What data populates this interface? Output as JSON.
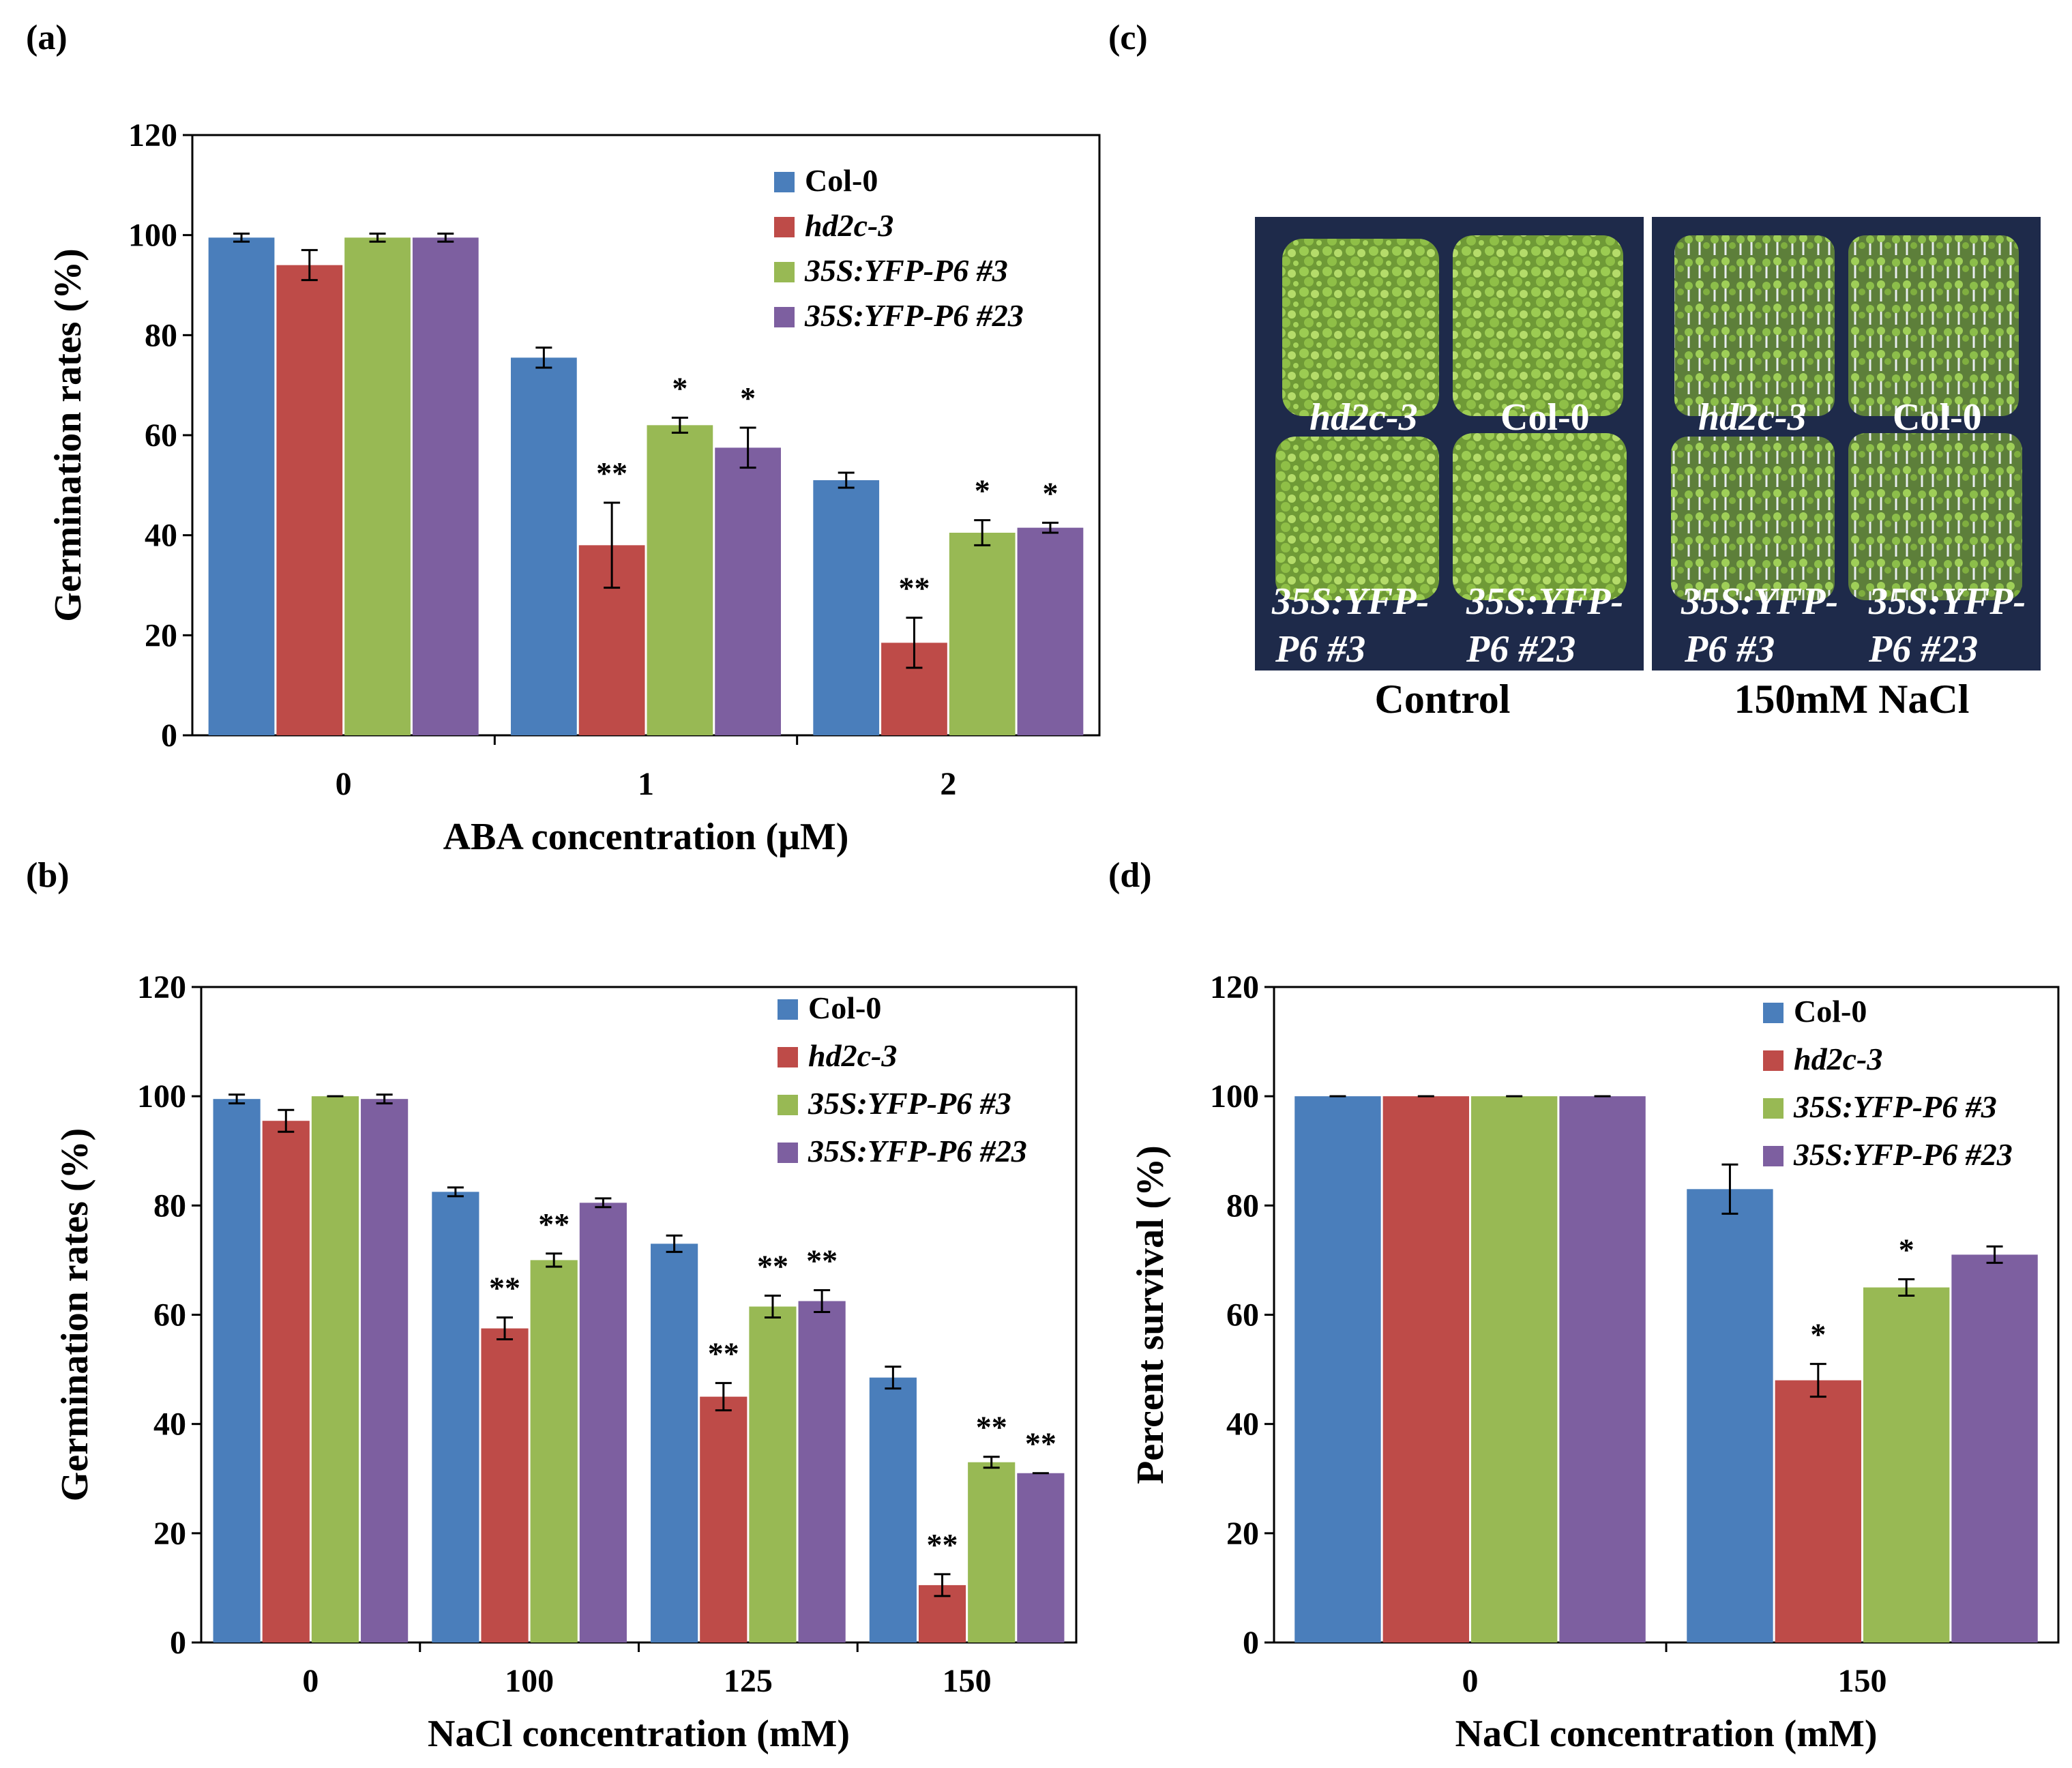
{
  "panels": {
    "a": "(a)",
    "b": "(b)",
    "c": "(c)",
    "d": "(d)"
  },
  "photo": {
    "left_caption": "Control",
    "right_caption": "150mM NaCl",
    "labels": {
      "hd2c": "hd2c-3",
      "col": "Col-0",
      "p6_3_line1": "35S:YFP-",
      "p6_3_line2": "P6 #3",
      "p6_23_line1": "35S:YFP-",
      "p6_23_line2": "P6 #23"
    },
    "colors": {
      "plate_bg": "#1e2a4a",
      "seedling": "#8bc34a"
    }
  },
  "chart_data": [
    {
      "panel": "a",
      "type": "bar",
      "title": "",
      "xlabel": "ABA concentration (μM)",
      "ylabel": "Germination rates (%)",
      "ylim": [
        0,
        120
      ],
      "yticks": [
        0,
        20,
        40,
        60,
        80,
        100,
        120
      ],
      "categories": [
        "0",
        "1",
        "2"
      ],
      "legend_position": "top-right",
      "series": [
        {
          "name": "Col-0",
          "italic": false,
          "color": "#4a7ebb",
          "values": [
            99.5,
            75.5,
            51
          ],
          "errors": [
            0.8,
            2,
            1.5
          ],
          "sig": [
            "",
            "",
            ""
          ]
        },
        {
          "name": "hd2c-3",
          "italic": true,
          "color": "#be4b48",
          "values": [
            94,
            38,
            18.5
          ],
          "errors": [
            3,
            8.5,
            5
          ],
          "sig": [
            "",
            "**",
            "**"
          ]
        },
        {
          "name": "35S:YFP-P6 #3",
          "italic": true,
          "color": "#98b954",
          "values": [
            99.5,
            62,
            40.5
          ],
          "errors": [
            0.8,
            1.5,
            2.5
          ],
          "sig": [
            "",
            "*",
            "*"
          ]
        },
        {
          "name": "35S:YFP-P6 #23",
          "italic": true,
          "color": "#7d5fa0",
          "values": [
            99.5,
            57.5,
            41.5
          ],
          "errors": [
            0.8,
            4,
            1
          ],
          "sig": [
            "",
            "*",
            "*"
          ]
        }
      ]
    },
    {
      "panel": "b",
      "type": "bar",
      "title": "",
      "xlabel": "NaCl concentration (mM)",
      "ylabel": "Germination rates (%)",
      "ylim": [
        0,
        120
      ],
      "yticks": [
        0,
        20,
        40,
        60,
        80,
        100,
        120
      ],
      "categories": [
        "0",
        "100",
        "125",
        "150"
      ],
      "legend_position": "top-right",
      "series": [
        {
          "name": "Col-0",
          "italic": false,
          "color": "#4a7ebb",
          "values": [
            99.5,
            82.5,
            73,
            48.5
          ],
          "errors": [
            0.8,
            0.8,
            1.5,
            2
          ],
          "sig": [
            "",
            "",
            "",
            ""
          ]
        },
        {
          "name": "hd2c-3",
          "italic": true,
          "color": "#be4b48",
          "values": [
            95.5,
            57.5,
            45,
            10.5
          ],
          "errors": [
            2,
            2,
            2.5,
            2
          ],
          "sig": [
            "",
            "**",
            "**",
            "**"
          ]
        },
        {
          "name": "35S:YFP-P6 #3",
          "italic": true,
          "color": "#98b954",
          "values": [
            100,
            70,
            61.5,
            33
          ],
          "errors": [
            0,
            1.2,
            2,
            1
          ],
          "sig": [
            "",
            "**",
            "**",
            "**"
          ]
        },
        {
          "name": "35S:YFP-P6 #23",
          "italic": true,
          "color": "#7d5fa0",
          "values": [
            99.5,
            80.5,
            62.5,
            31
          ],
          "errors": [
            0.8,
            0.8,
            2,
            0
          ],
          "sig": [
            "",
            "",
            "**",
            "**"
          ]
        }
      ]
    },
    {
      "panel": "d",
      "type": "bar",
      "title": "",
      "xlabel": "NaCl concentration (mM)",
      "ylabel": "Percent survival (%)",
      "ylim": [
        0,
        120
      ],
      "yticks": [
        0,
        20,
        40,
        60,
        80,
        100,
        120
      ],
      "categories": [
        "0",
        "150"
      ],
      "legend_position": "top-right",
      "series": [
        {
          "name": "Col-0",
          "italic": false,
          "color": "#4a7ebb",
          "values": [
            100,
            83
          ],
          "errors": [
            0,
            4.5
          ],
          "sig": [
            "",
            ""
          ]
        },
        {
          "name": "hd2c-3",
          "italic": true,
          "color": "#be4b48",
          "values": [
            100,
            48
          ],
          "errors": [
            0,
            3
          ],
          "sig": [
            "",
            "*"
          ]
        },
        {
          "name": "35S:YFP-P6 #3",
          "italic": true,
          "color": "#98b954",
          "values": [
            100,
            65
          ],
          "errors": [
            0,
            1.5
          ],
          "sig": [
            "",
            "*"
          ]
        },
        {
          "name": "35S:YFP-P6 #23",
          "italic": true,
          "color": "#7d5fa0",
          "values": [
            100,
            71
          ],
          "errors": [
            0,
            1.5
          ],
          "sig": [
            "",
            ""
          ]
        }
      ]
    }
  ]
}
